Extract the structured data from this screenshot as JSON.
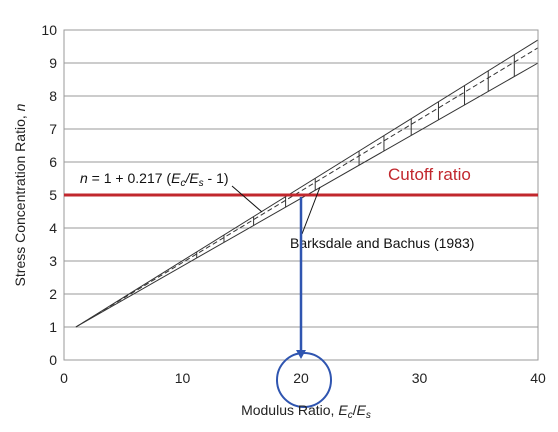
{
  "chart_data": {
    "type": "line",
    "xlabel_parts": [
      "Modulus Ratio, ",
      "E",
      "c",
      "/",
      "E",
      "s"
    ],
    "ylabel_parts": [
      "Stress Concentration Ratio, ",
      "n"
    ],
    "xlim": [
      0,
      40
    ],
    "ylim": [
      0,
      10
    ],
    "x_ticks": [
      0,
      10,
      20,
      30,
      40
    ],
    "y_ticks": [
      0,
      1,
      2,
      3,
      4,
      5,
      6,
      7,
      8,
      9,
      10
    ],
    "grid": "horizontal",
    "series": [
      {
        "role": "upper-bound",
        "style": "solid",
        "x": [
          1,
          40
        ],
        "y": [
          1,
          9.7
        ]
      },
      {
        "role": "lower-bound",
        "style": "solid",
        "x": [
          1,
          40
        ],
        "y": [
          1,
          9.0
        ]
      },
      {
        "role": "equation-fit",
        "style": "dashed",
        "x": [
          1,
          40
        ],
        "y": [
          1,
          9.46
        ]
      }
    ],
    "range_bars_x": [
      11.2,
      13.5,
      16,
      18.7,
      21.2,
      24.9,
      27,
      29.3,
      31.6,
      33.8,
      35.8,
      38
    ],
    "cutoff": {
      "value": 5,
      "label": "Cutoff ratio",
      "color": "#c1272d"
    },
    "marker": {
      "x": 20,
      "color": "#2f55b0",
      "label": "20"
    },
    "equation_parts": [
      "n",
      " = 1 + 0.217 (",
      "E",
      "c",
      "/",
      "E",
      "s",
      " - 1)"
    ],
    "source_label": "Barksdale and Bachus (1983)"
  }
}
